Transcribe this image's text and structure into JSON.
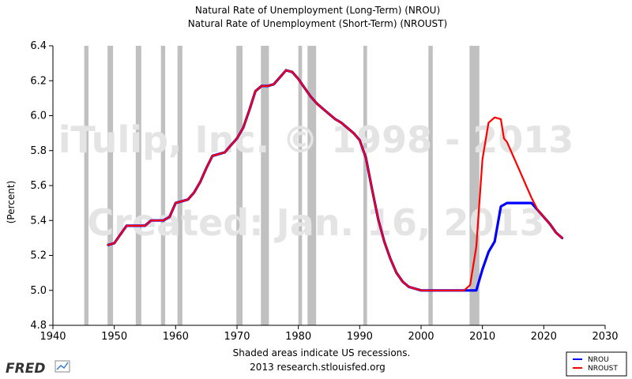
{
  "chart_data": {
    "type": "line",
    "titles": [
      "Natural Rate of Unemployment (Long-Term) (NROU)",
      "Natural Rate of Unemployment (Short-Term) (NROUST)"
    ],
    "ylabel": "(Percent)",
    "xlim": [
      1940,
      2030
    ],
    "ylim": [
      4.8,
      6.4
    ],
    "x_ticks": [
      1940,
      1950,
      1960,
      1970,
      1980,
      1990,
      2000,
      2010,
      2020,
      2030
    ],
    "y_ticks": [
      "4.8",
      "5.0",
      "5.2",
      "5.4",
      "5.6",
      "5.8",
      "6.0",
      "6.2",
      "6.4"
    ],
    "grid": false,
    "legend_position": "bottom-right",
    "recessions": [
      [
        1945.1,
        1945.8
      ],
      [
        1948.9,
        1949.8
      ],
      [
        1953.5,
        1954.4
      ],
      [
        1957.6,
        1958.3
      ],
      [
        1960.3,
        1961.1
      ],
      [
        1969.9,
        1970.9
      ],
      [
        1973.9,
        1975.2
      ],
      [
        1980.0,
        1980.6
      ],
      [
        1981.5,
        1982.9
      ],
      [
        1990.6,
        1991.2
      ],
      [
        2001.2,
        2001.9
      ],
      [
        2007.9,
        2009.5
      ]
    ],
    "series": [
      {
        "name": "NROU",
        "color": "#0000ff",
        "points": [
          [
            1949,
            5.26
          ],
          [
            1950,
            5.27
          ],
          [
            1951,
            5.32
          ],
          [
            1952,
            5.37
          ],
          [
            1953,
            5.37
          ],
          [
            1954,
            5.37
          ],
          [
            1955,
            5.37
          ],
          [
            1956,
            5.4
          ],
          [
            1957,
            5.4
          ],
          [
            1958,
            5.4
          ],
          [
            1959,
            5.42
          ],
          [
            1960,
            5.5
          ],
          [
            1961,
            5.51
          ],
          [
            1962,
            5.52
          ],
          [
            1963,
            5.56
          ],
          [
            1964,
            5.62
          ],
          [
            1965,
            5.7
          ],
          [
            1966,
            5.77
          ],
          [
            1967,
            5.78
          ],
          [
            1968,
            5.79
          ],
          [
            1969,
            5.83
          ],
          [
            1970,
            5.87
          ],
          [
            1971,
            5.93
          ],
          [
            1972,
            6.03
          ],
          [
            1973,
            6.14
          ],
          [
            1974,
            6.17
          ],
          [
            1975,
            6.17
          ],
          [
            1976,
            6.18
          ],
          [
            1977,
            6.22
          ],
          [
            1978,
            6.26
          ],
          [
            1979,
            6.25
          ],
          [
            1980,
            6.21
          ],
          [
            1981,
            6.16
          ],
          [
            1982,
            6.11
          ],
          [
            1983,
            6.07
          ],
          [
            1984,
            6.04
          ],
          [
            1985,
            6.01
          ],
          [
            1986,
            5.98
          ],
          [
            1987,
            5.96
          ],
          [
            1988,
            5.93
          ],
          [
            1989,
            5.9
          ],
          [
            1990,
            5.86
          ],
          [
            1991,
            5.76
          ],
          [
            1992,
            5.58
          ],
          [
            1993,
            5.41
          ],
          [
            1994,
            5.28
          ],
          [
            1995,
            5.18
          ],
          [
            1996,
            5.1
          ],
          [
            1997,
            5.05
          ],
          [
            1998,
            5.02
          ],
          [
            1999,
            5.01
          ],
          [
            2000,
            5.0
          ],
          [
            2001,
            5.0
          ],
          [
            2002,
            5.0
          ],
          [
            2003,
            5.0
          ],
          [
            2004,
            5.0
          ],
          [
            2005,
            5.0
          ],
          [
            2006,
            5.0
          ],
          [
            2007,
            5.0
          ],
          [
            2008,
            5.0
          ],
          [
            2009,
            5.0
          ],
          [
            2010,
            5.12
          ],
          [
            2011,
            5.22
          ],
          [
            2012,
            5.28
          ],
          [
            2013,
            5.48
          ],
          [
            2014,
            5.5
          ],
          [
            2015,
            5.5
          ],
          [
            2016,
            5.5
          ],
          [
            2017,
            5.5
          ],
          [
            2018,
            5.5
          ],
          [
            2019,
            5.46
          ],
          [
            2020,
            5.42
          ],
          [
            2021,
            5.38
          ],
          [
            2022,
            5.33
          ],
          [
            2023,
            5.3
          ]
        ]
      },
      {
        "name": "NROUST",
        "color": "#ff0000",
        "points": [
          [
            1949,
            5.26
          ],
          [
            1950,
            5.27
          ],
          [
            1951,
            5.32
          ],
          [
            1952,
            5.37
          ],
          [
            1953,
            5.37
          ],
          [
            1954,
            5.37
          ],
          [
            1955,
            5.37
          ],
          [
            1956,
            5.4
          ],
          [
            1957,
            5.4
          ],
          [
            1958,
            5.4
          ],
          [
            1959,
            5.42
          ],
          [
            1960,
            5.5
          ],
          [
            1961,
            5.51
          ],
          [
            1962,
            5.52
          ],
          [
            1963,
            5.56
          ],
          [
            1964,
            5.62
          ],
          [
            1965,
            5.7
          ],
          [
            1966,
            5.77
          ],
          [
            1967,
            5.78
          ],
          [
            1968,
            5.79
          ],
          [
            1969,
            5.83
          ],
          [
            1970,
            5.87
          ],
          [
            1971,
            5.93
          ],
          [
            1972,
            6.03
          ],
          [
            1973,
            6.14
          ],
          [
            1974,
            6.17
          ],
          [
            1975,
            6.17
          ],
          [
            1976,
            6.18
          ],
          [
            1977,
            6.22
          ],
          [
            1978,
            6.26
          ],
          [
            1979,
            6.25
          ],
          [
            1980,
            6.21
          ],
          [
            1981,
            6.16
          ],
          [
            1982,
            6.11
          ],
          [
            1983,
            6.07
          ],
          [
            1984,
            6.04
          ],
          [
            1985,
            6.01
          ],
          [
            1986,
            5.98
          ],
          [
            1987,
            5.96
          ],
          [
            1988,
            5.93
          ],
          [
            1989,
            5.9
          ],
          [
            1990,
            5.86
          ],
          [
            1991,
            5.76
          ],
          [
            1992,
            5.58
          ],
          [
            1993,
            5.41
          ],
          [
            1994,
            5.28
          ],
          [
            1995,
            5.18
          ],
          [
            1996,
            5.1
          ],
          [
            1997,
            5.05
          ],
          [
            1998,
            5.02
          ],
          [
            1999,
            5.01
          ],
          [
            2000,
            5.0
          ],
          [
            2001,
            5.0
          ],
          [
            2002,
            5.0
          ],
          [
            2003,
            5.0
          ],
          [
            2004,
            5.0
          ],
          [
            2005,
            5.0
          ],
          [
            2006,
            5.0
          ],
          [
            2007,
            5.0
          ],
          [
            2008,
            5.03
          ],
          [
            2009,
            5.25
          ],
          [
            2010,
            5.75
          ],
          [
            2011,
            5.96
          ],
          [
            2012,
            5.99
          ],
          [
            2013,
            5.98
          ],
          [
            2013.5,
            5.87
          ],
          [
            2014,
            5.85
          ],
          [
            2015,
            5.77
          ],
          [
            2016,
            5.69
          ],
          [
            2017,
            5.61
          ],
          [
            2018,
            5.53
          ],
          [
            2019,
            5.46
          ],
          [
            2020,
            5.42
          ],
          [
            2021,
            5.38
          ],
          [
            2022,
            5.33
          ],
          [
            2023,
            5.3
          ]
        ]
      }
    ]
  },
  "watermark": {
    "line1": "iTulip, Inc. © 1998 - 2013",
    "line2": "Created: Jan. 16, 2013"
  },
  "footer": {
    "note": "Shaded areas indicate US recessions.",
    "source": "2013 research.stlouisfed.org",
    "logo": "FRED"
  },
  "legend": {
    "items": [
      {
        "label": "NROU",
        "color": "#0000ff"
      },
      {
        "label": "NROUST",
        "color": "#ff0000"
      }
    ]
  },
  "colors": {
    "recession_band": "#c0c0c0",
    "axis": "#000000"
  }
}
